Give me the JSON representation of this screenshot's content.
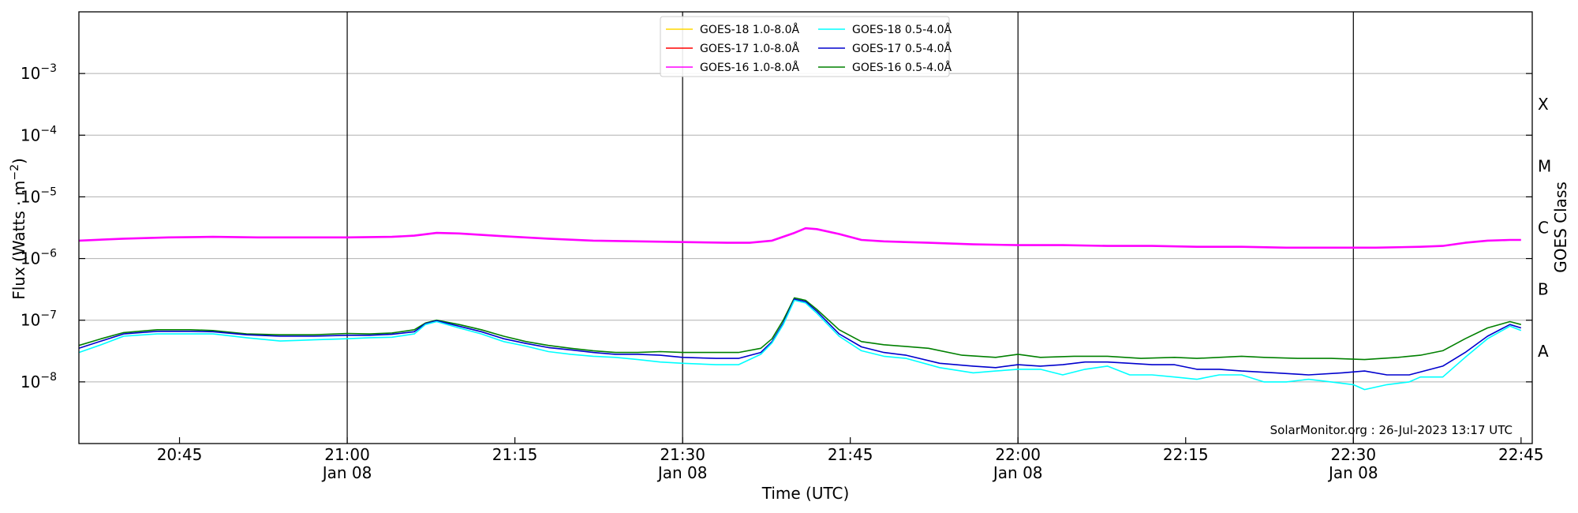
{
  "chart_data": {
    "type": "line",
    "xlabel": "Time (UTC)",
    "ylabel_main": "Flux (Watts · m",
    "ylabel_sup": "−2",
    "ylabel_close": ")",
    "right_label": "GOES Class",
    "scale": "log",
    "ylim": [
      "1e-9",
      "1e-2"
    ],
    "xlim": [
      "20:36",
      "22:46"
    ],
    "grid": "horizontal at decades",
    "legend_position": "top-center",
    "credit": "SolarMonitor.org : 26-Jul-2023 13:17 UTC",
    "x_ticks": [
      {
        "time": "20:45",
        "date": ""
      },
      {
        "time": "21:00",
        "date": "Jan 08"
      },
      {
        "time": "21:15",
        "date": ""
      },
      {
        "time": "21:30",
        "date": "Jan 08"
      },
      {
        "time": "21:45",
        "date": ""
      },
      {
        "time": "22:00",
        "date": "Jan 08"
      },
      {
        "time": "22:15",
        "date": ""
      },
      {
        "time": "22:30",
        "date": "Jan 08"
      },
      {
        "time": "22:45",
        "date": ""
      }
    ],
    "vertical_lines": [
      "21:00",
      "21:30",
      "22:00",
      "22:30"
    ],
    "y_ticks": [
      {
        "exp": -3,
        "base": "10",
        "sup": "−3"
      },
      {
        "exp": -4,
        "base": "10",
        "sup": "−4"
      },
      {
        "exp": -5,
        "base": "10",
        "sup": "−5"
      },
      {
        "exp": -6,
        "base": "10",
        "sup": "−6"
      },
      {
        "exp": -7,
        "base": "10",
        "sup": "−7"
      },
      {
        "exp": -8,
        "base": "10",
        "sup": "−8"
      }
    ],
    "classes": [
      {
        "label": "X",
        "exp": -3.5
      },
      {
        "label": "M",
        "exp": -4.5
      },
      {
        "label": "C",
        "exp": -5.5
      },
      {
        "label": "B",
        "exp": -6.5
      },
      {
        "label": "A",
        "exp": -7.5
      }
    ],
    "legend": [
      {
        "name": "GOES-18 1.0-8.0Å",
        "color": "#ffd700"
      },
      {
        "name": "GOES-17 1.0-8.0Å",
        "color": "#ff0000"
      },
      {
        "name": "GOES-16 1.0-8.0Å",
        "color": "#ff00ff"
      },
      {
        "name": "GOES-18 0.5-4.0Å",
        "color": "#00ffff"
      },
      {
        "name": "GOES-17 0.5-4.0Å",
        "color": "#0000cd"
      },
      {
        "name": "GOES-16 0.5-4.0Å",
        "color": "#008000"
      }
    ],
    "series": [
      {
        "name": "GOES-16 1.0-8.0Å",
        "color": "#ff00ff",
        "x": [
          "20:36",
          "20:40",
          "20:44",
          "20:48",
          "20:52",
          "20:56",
          "21:00",
          "21:04",
          "21:06",
          "21:08",
          "21:10",
          "21:14",
          "21:18",
          "21:22",
          "21:26",
          "21:30",
          "21:34",
          "21:36",
          "21:38",
          "21:40",
          "21:41",
          "21:42",
          "21:44",
          "21:46",
          "21:48",
          "21:52",
          "21:56",
          "22:00",
          "22:04",
          "22:08",
          "22:12",
          "22:16",
          "22:20",
          "22:24",
          "22:28",
          "22:32",
          "22:36",
          "22:38",
          "22:40",
          "22:42",
          "22:44",
          "22:45"
        ],
        "y": [
          1.95e-06,
          2.1e-06,
          2.2e-06,
          2.25e-06,
          2.2e-06,
          2.2e-06,
          2.2e-06,
          2.25e-06,
          2.35e-06,
          2.6e-06,
          2.55e-06,
          2.3e-06,
          2.1e-06,
          1.95e-06,
          1.9e-06,
          1.85e-06,
          1.8e-06,
          1.8e-06,
          1.95e-06,
          2.6e-06,
          3.1e-06,
          3e-06,
          2.5e-06,
          2e-06,
          1.9e-06,
          1.8e-06,
          1.7e-06,
          1.65e-06,
          1.65e-06,
          1.6e-06,
          1.6e-06,
          1.55e-06,
          1.55e-06,
          1.5e-06,
          1.5e-06,
          1.5e-06,
          1.55e-06,
          1.6e-06,
          1.8e-06,
          1.95e-06,
          2e-06,
          2e-06
        ]
      },
      {
        "name": "GOES-16 0.5-4.0Å",
        "color": "#008000",
        "x": [
          "20:36",
          "20:38",
          "20:40",
          "20:43",
          "20:46",
          "20:48",
          "20:51",
          "20:54",
          "20:57",
          "21:00",
          "21:02",
          "21:04",
          "21:06",
          "21:07",
          "21:08",
          "21:10",
          "21:12",
          "21:14",
          "21:16",
          "21:18",
          "21:20",
          "21:22",
          "21:24",
          "21:26",
          "21:28",
          "21:30",
          "21:33",
          "21:35",
          "21:37",
          "21:38",
          "21:39",
          "21:40",
          "21:41",
          "21:42",
          "21:44",
          "21:46",
          "21:48",
          "21:52",
          "21:55",
          "21:58",
          "22:00",
          "22:02",
          "22:05",
          "22:08",
          "22:11",
          "22:14",
          "22:16",
          "22:18",
          "22:20",
          "22:22",
          "22:25",
          "22:28",
          "22:31",
          "22:34",
          "22:36",
          "22:38",
          "22:40",
          "22:42",
          "22:44",
          "22:45"
        ],
        "y": [
          3.9e-08,
          5e-08,
          6.3e-08,
          7e-08,
          7e-08,
          6.8e-08,
          6e-08,
          5.8e-08,
          5.8e-08,
          6.1e-08,
          6e-08,
          6.2e-08,
          7e-08,
          9e-08,
          1e-07,
          8.5e-08,
          7e-08,
          5.5e-08,
          4.5e-08,
          3.9e-08,
          3.5e-08,
          3.2e-08,
          3e-08,
          3e-08,
          3.1e-08,
          3e-08,
          3e-08,
          3e-08,
          3.5e-08,
          5e-08,
          1e-07,
          2.3e-07,
          2.1e-07,
          1.5e-07,
          7e-08,
          4.5e-08,
          4e-08,
          3.5e-08,
          2.7e-08,
          2.5e-08,
          2.8e-08,
          2.5e-08,
          2.6e-08,
          2.6e-08,
          2.4e-08,
          2.5e-08,
          2.4e-08,
          2.5e-08,
          2.6e-08,
          2.5e-08,
          2.4e-08,
          2.4e-08,
          2.3e-08,
          2.5e-08,
          2.7e-08,
          3.2e-08,
          5e-08,
          7.5e-08,
          9.5e-08,
          8.5e-08
        ]
      },
      {
        "name": "GOES-17 0.5-4.0Å",
        "color": "#0000cd",
        "x": [
          "20:36",
          "20:38",
          "20:40",
          "20:43",
          "20:46",
          "20:48",
          "20:51",
          "20:54",
          "20:57",
          "21:00",
          "21:02",
          "21:04",
          "21:06",
          "21:07",
          "21:08",
          "21:10",
          "21:12",
          "21:14",
          "21:16",
          "21:18",
          "21:20",
          "21:22",
          "21:24",
          "21:26",
          "21:28",
          "21:30",
          "21:33",
          "21:35",
          "21:37",
          "21:38",
          "21:39",
          "21:40",
          "21:41",
          "21:42",
          "21:44",
          "21:46",
          "21:48",
          "21:50",
          "21:53",
          "21:56",
          "21:58",
          "22:00",
          "22:02",
          "22:04",
          "22:06",
          "22:08",
          "22:10",
          "22:12",
          "22:14",
          "22:16",
          "22:18",
          "22:20",
          "22:23",
          "22:26",
          "22:29",
          "22:31",
          "22:33",
          "22:35",
          "22:38",
          "22:40",
          "22:42",
          "22:44",
          "22:45"
        ],
        "y": [
          3.5e-08,
          4.6e-08,
          6e-08,
          6.6e-08,
          6.6e-08,
          6.5e-08,
          5.8e-08,
          5.5e-08,
          5.5e-08,
          5.7e-08,
          5.7e-08,
          5.9e-08,
          6.5e-08,
          8.8e-08,
          9.8e-08,
          8e-08,
          6.5e-08,
          5e-08,
          4.2e-08,
          3.6e-08,
          3.3e-08,
          3e-08,
          2.8e-08,
          2.8e-08,
          2.7e-08,
          2.5e-08,
          2.4e-08,
          2.4e-08,
          3e-08,
          4.5e-08,
          9e-08,
          2.2e-07,
          2e-07,
          1.4e-07,
          6e-08,
          3.7e-08,
          3e-08,
          2.7e-08,
          2e-08,
          1.8e-08,
          1.7e-08,
          1.9e-08,
          1.8e-08,
          1.9e-08,
          2.1e-08,
          2.1e-08,
          2e-08,
          1.9e-08,
          1.9e-08,
          1.6e-08,
          1.6e-08,
          1.5e-08,
          1.4e-08,
          1.3e-08,
          1.4e-08,
          1.5e-08,
          1.3e-08,
          1.3e-08,
          1.8e-08,
          3e-08,
          5.5e-08,
          8.5e-08,
          7.5e-08
        ]
      },
      {
        "name": "GOES-18 0.5-4.0Å",
        "color": "#00ffff",
        "x": [
          "20:36",
          "20:38",
          "20:40",
          "20:43",
          "20:46",
          "20:48",
          "20:51",
          "20:54",
          "20:57",
          "21:00",
          "21:02",
          "21:04",
          "21:06",
          "21:07",
          "21:08",
          "21:10",
          "21:12",
          "21:14",
          "21:16",
          "21:18",
          "21:20",
          "21:22",
          "21:24",
          "21:26",
          "21:28",
          "21:30",
          "21:33",
          "21:35",
          "21:37",
          "21:38",
          "21:39",
          "21:40",
          "21:41",
          "21:42",
          "21:44",
          "21:46",
          "21:48",
          "21:50",
          "21:53",
          "21:56",
          "21:58",
          "22:00",
          "22:02",
          "22:04",
          "22:06",
          "22:08",
          "22:10",
          "22:12",
          "22:14",
          "22:16",
          "22:18",
          "22:20",
          "22:22",
          "22:24",
          "22:26",
          "22:28",
          "22:30",
          "22:31",
          "22:33",
          "22:35",
          "22:36",
          "22:38",
          "22:40",
          "22:42",
          "22:44",
          "22:45"
        ],
        "y": [
          3e-08,
          4e-08,
          5.5e-08,
          6e-08,
          6e-08,
          6e-08,
          5.2e-08,
          4.6e-08,
          4.8e-08,
          5e-08,
          5.2e-08,
          5.3e-08,
          6e-08,
          8.5e-08,
          9.5e-08,
          7.5e-08,
          6e-08,
          4.5e-08,
          3.8e-08,
          3.1e-08,
          2.8e-08,
          2.6e-08,
          2.5e-08,
          2.3e-08,
          2.1e-08,
          2e-08,
          1.9e-08,
          1.9e-08,
          2.8e-08,
          4.3e-08,
          8.5e-08,
          2.1e-07,
          1.9e-07,
          1.3e-07,
          5.5e-08,
          3.2e-08,
          2.6e-08,
          2.4e-08,
          1.7e-08,
          1.4e-08,
          1.5e-08,
          1.6e-08,
          1.6e-08,
          1.3e-08,
          1.6e-08,
          1.8e-08,
          1.3e-08,
          1.3e-08,
          1.2e-08,
          1.1e-08,
          1.3e-08,
          1.3e-08,
          1e-08,
          1e-08,
          1.1e-08,
          1e-08,
          9e-09,
          7.5e-09,
          9e-09,
          1e-08,
          1.2e-08,
          1.2e-08,
          2.5e-08,
          5e-08,
          8e-08,
          6.8e-08
        ]
      }
    ]
  }
}
